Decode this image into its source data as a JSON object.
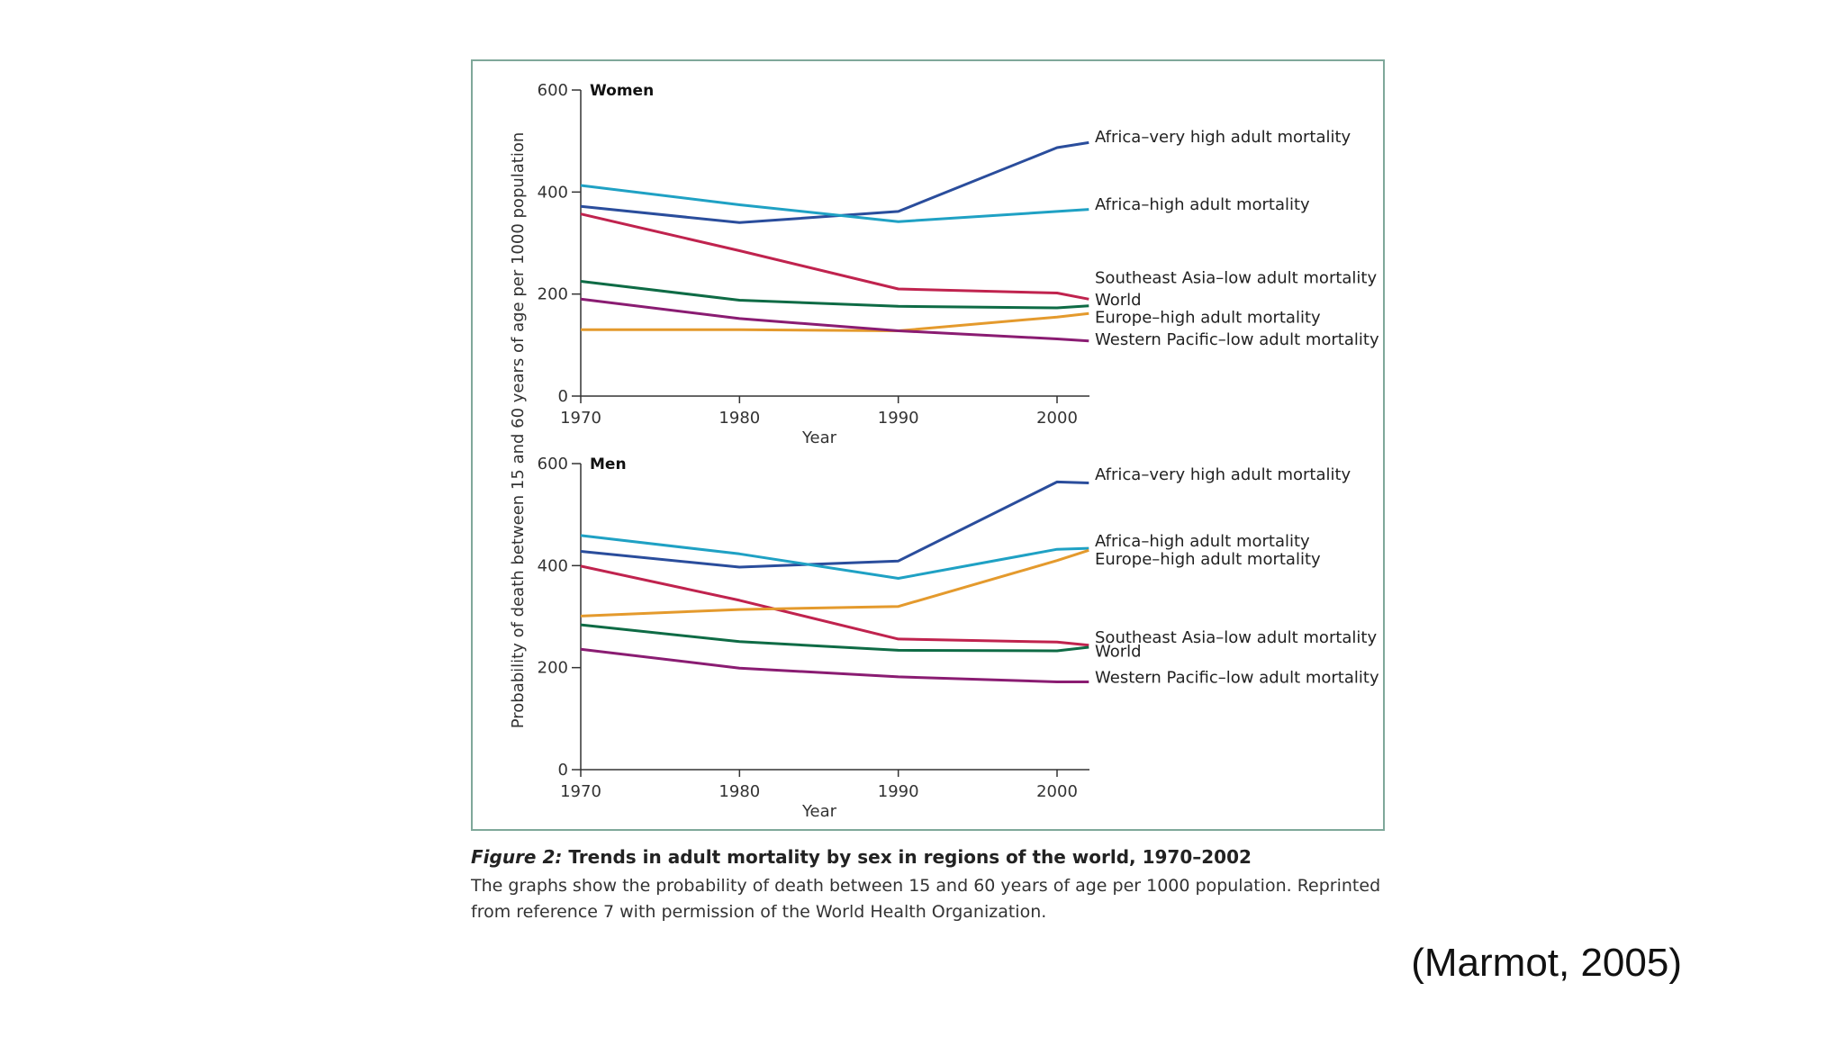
{
  "figure": {
    "caption_label": "Figure 2:",
    "caption_title": " Trends in adult mortality by sex in regions of the world, 1970–2002",
    "caption_text": "The graphs show the probability of death between 15 and 60 years of age per 1000 population. Reprinted from reference 7 with permission of the World Health Organization.",
    "y_axis_label": "Probability of death between 15 and 60 years of age per 1000 population"
  },
  "citation": "(Marmot, 2005)",
  "colors": {
    "Africa–very high adult mortality": "#2a4d9c",
    "Africa–high adult mortality": "#1fa1c4",
    "Southeast Asia–low adult mortality": "#c0234e",
    "World": "#0e6b45",
    "Europe–high adult mortality": "#e49a2d",
    "Western Pacific–low adult mortality": "#8a1c72"
  },
  "chart_data": [
    {
      "type": "line",
      "title": "Women",
      "xlabel": "Year",
      "ylabel": "Probability of death between 15 and 60 years of age per 1000 population",
      "x": [
        1970,
        1980,
        1990,
        2000,
        2002
      ],
      "xticks": [
        1970,
        1980,
        1990,
        2000
      ],
      "yticks": [
        0,
        200,
        400,
        600
      ],
      "xlim": [
        1970,
        2002
      ],
      "ylim": [
        0,
        600
      ],
      "series": [
        {
          "name": "Africa–very high adult mortality",
          "values": [
            372,
            340,
            362,
            487,
            497
          ]
        },
        {
          "name": "Africa–high adult mortality",
          "values": [
            413,
            375,
            342,
            362,
            366
          ]
        },
        {
          "name": "Southeast Asia–low adult mortality",
          "values": [
            357,
            285,
            210,
            202,
            190
          ]
        },
        {
          "name": "World",
          "values": [
            225,
            188,
            176,
            173,
            177
          ]
        },
        {
          "name": "Europe–high adult mortality",
          "values": [
            130,
            130,
            128,
            155,
            162
          ]
        },
        {
          "name": "Western Pacific–low adult mortality",
          "values": [
            190,
            152,
            128,
            112,
            108
          ]
        }
      ],
      "labels": [
        {
          "text": "Africa–very high adult mortality",
          "y": 508
        },
        {
          "text": "Africa–high adult mortality",
          "y": 376
        },
        {
          "text": "Southeast Asia–low adult mortality",
          "y": 232
        },
        {
          "text": "World",
          "y": 189
        },
        {
          "text": "Europe–high adult mortality",
          "y": 154
        },
        {
          "text": "Western Pacific–low adult mortality",
          "y": 111
        }
      ]
    },
    {
      "type": "line",
      "title": "Men",
      "xlabel": "Year",
      "ylabel": "Probability of death between 15 and 60 years of age per 1000 population",
      "x": [
        1970,
        1980,
        1990,
        2000,
        2002
      ],
      "xticks": [
        1970,
        1980,
        1990,
        2000
      ],
      "yticks": [
        0,
        200,
        400,
        600
      ],
      "xlim": [
        1970,
        2002
      ],
      "ylim": [
        0,
        600
      ],
      "series": [
        {
          "name": "Africa–very high adult mortality",
          "values": [
            428,
            397,
            409,
            564,
            562
          ]
        },
        {
          "name": "Africa–high adult mortality",
          "values": [
            459,
            423,
            375,
            432,
            434
          ]
        },
        {
          "name": "Southeast Asia–low adult mortality",
          "values": [
            399,
            332,
            256,
            250,
            244
          ]
        },
        {
          "name": "World",
          "values": [
            284,
            251,
            234,
            233,
            240
          ]
        },
        {
          "name": "Europe–high adult mortality",
          "values": [
            301,
            314,
            320,
            410,
            430
          ]
        },
        {
          "name": "Western Pacific–low adult mortality",
          "values": [
            236,
            199,
            182,
            172,
            172
          ]
        }
      ],
      "labels": [
        {
          "text": "Africa–very high adult mortality",
          "y": 579
        },
        {
          "text": "Africa–high adult mortality",
          "y": 448
        },
        {
          "text": "Europe–high adult mortality",
          "y": 413
        },
        {
          "text": "Southeast Asia–low adult mortality",
          "y": 259
        },
        {
          "text": "World",
          "y": 232
        },
        {
          "text": "Western Pacific–low adult mortality",
          "y": 181
        }
      ]
    }
  ]
}
